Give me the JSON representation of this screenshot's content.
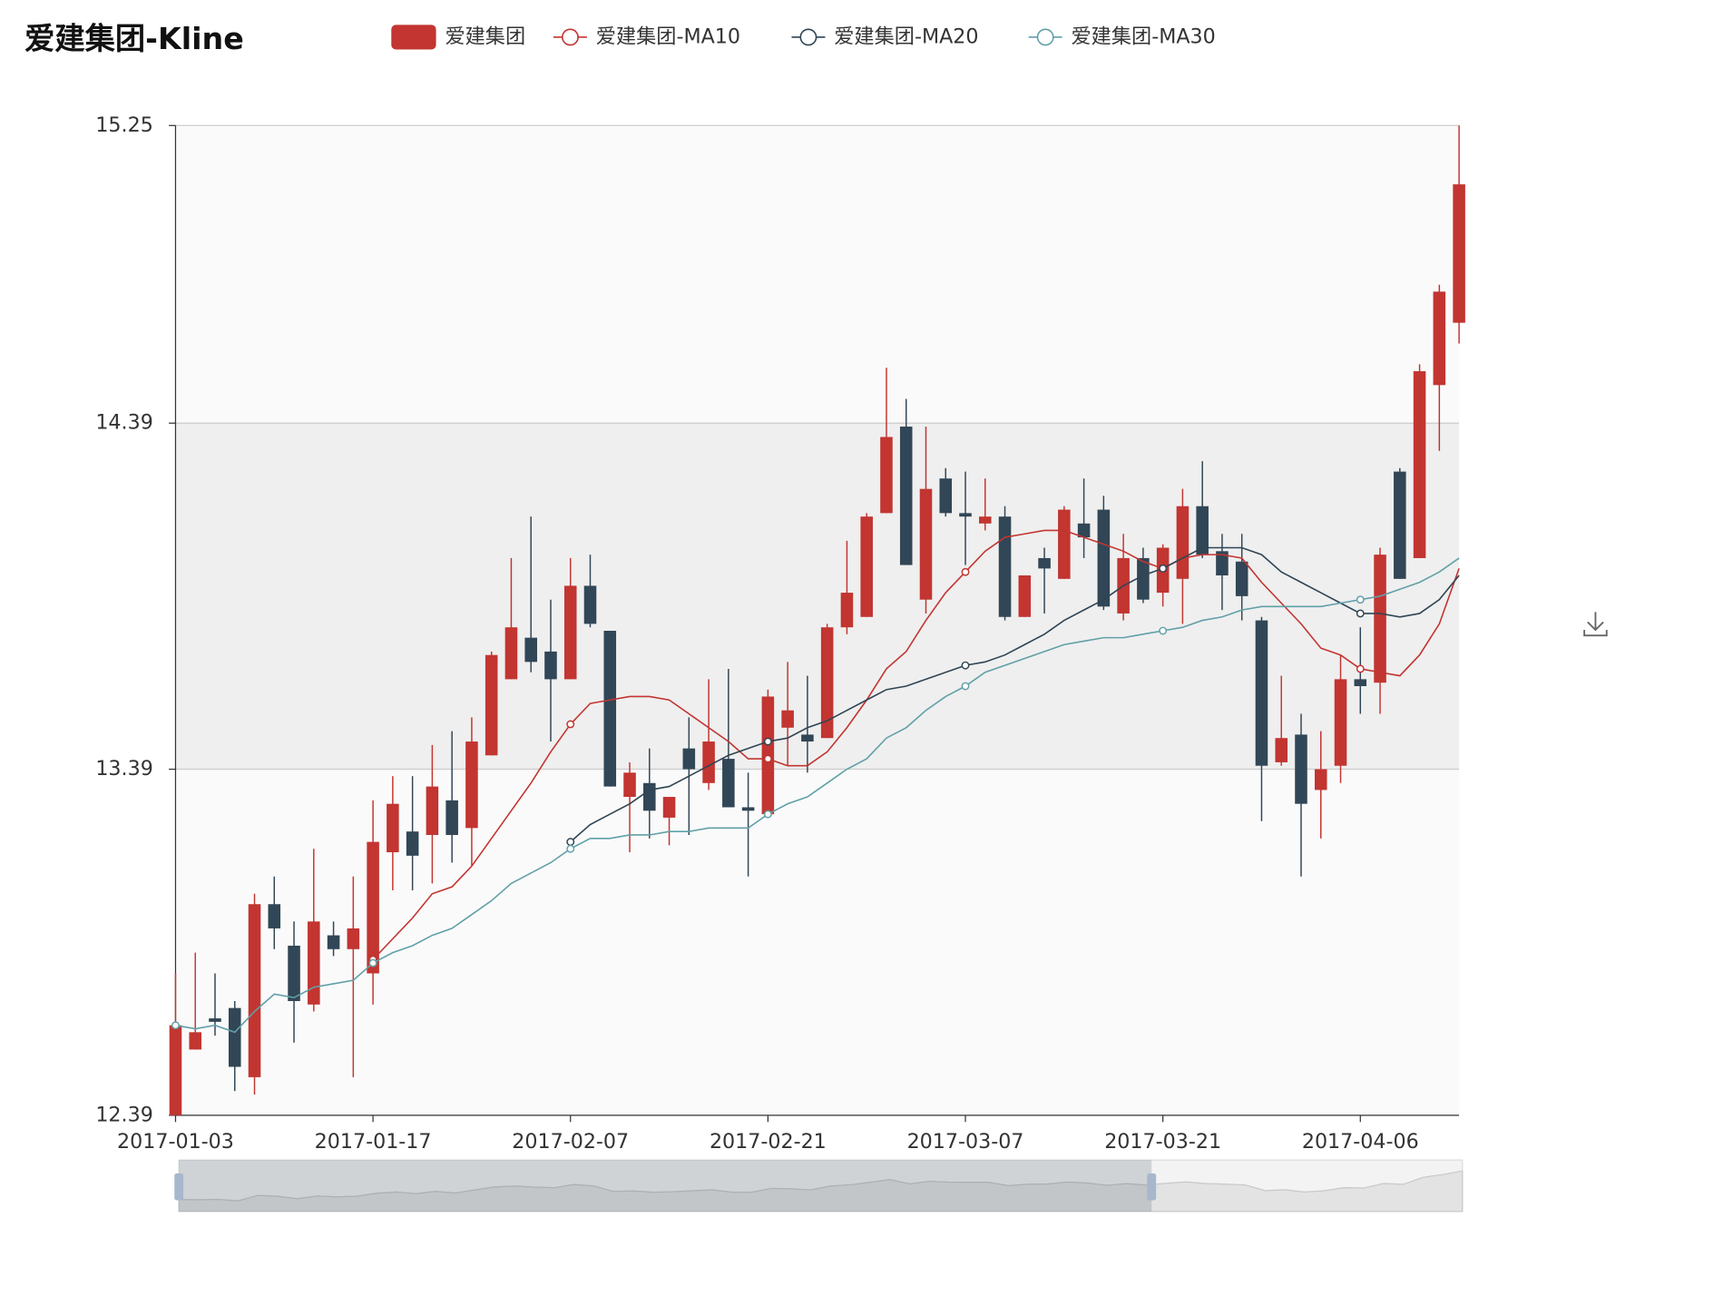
{
  "chart_data": {
    "type": "candlestick",
    "title": "爱建集团-Kline",
    "categories": [
      "2017-01-03",
      null,
      null,
      null,
      null,
      null,
      null,
      null,
      null,
      null,
      "2017-01-17",
      null,
      null,
      null,
      null,
      null,
      null,
      null,
      null,
      null,
      "2017-02-07",
      null,
      null,
      null,
      null,
      null,
      null,
      null,
      null,
      null,
      "2017-02-21",
      null,
      null,
      null,
      null,
      null,
      null,
      null,
      null,
      null,
      "2017-03-07",
      null,
      null,
      null,
      null,
      null,
      null,
      null,
      null,
      null,
      "2017-03-21",
      null,
      null,
      null,
      null,
      null,
      null,
      null,
      null,
      null,
      "2017-04-06",
      null,
      null,
      null,
      null,
      null
    ],
    "ylim": [
      12.39,
      15.25
    ],
    "yticks": [
      12.39,
      13.39,
      14.39,
      15.25
    ],
    "grid": true,
    "split_area": true,
    "series": [
      {
        "name": "爱建集团",
        "type": "candlestick",
        "color": "#c23531",
        "color0": "#314656",
        "open": [
          12.39,
          12.58,
          12.67,
          12.7,
          12.5,
          13.0,
          12.88,
          12.71,
          12.91,
          12.87,
          12.8,
          13.15,
          13.21,
          13.2,
          13.3,
          13.22,
          13.43,
          13.65,
          13.77,
          13.73,
          13.65,
          13.92,
          13.79,
          13.31,
          13.35,
          13.25,
          13.45,
          13.35,
          13.42,
          13.28,
          13.26,
          13.51,
          13.49,
          13.48,
          13.8,
          13.83,
          14.13,
          14.38,
          13.88,
          14.23,
          14.13,
          14.1,
          14.12,
          13.83,
          14.0,
          13.94,
          14.1,
          14.14,
          13.84,
          14.0,
          13.9,
          13.94,
          14.15,
          14.02,
          13.99,
          13.82,
          13.41,
          13.49,
          13.33,
          13.4,
          13.65,
          13.64,
          14.25,
          14.0,
          14.5,
          14.68
        ],
        "close": [
          12.65,
          12.63,
          12.66,
          12.53,
          13.0,
          12.93,
          12.72,
          12.95,
          12.87,
          12.93,
          13.18,
          13.29,
          13.14,
          13.34,
          13.2,
          13.47,
          13.72,
          13.8,
          13.7,
          13.65,
          13.92,
          13.81,
          13.34,
          13.38,
          13.27,
          13.31,
          13.39,
          13.47,
          13.28,
          13.27,
          13.6,
          13.56,
          13.47,
          13.8,
          13.9,
          14.12,
          14.35,
          13.98,
          14.2,
          14.13,
          14.12,
          14.12,
          13.83,
          13.95,
          13.97,
          14.14,
          14.06,
          13.86,
          14.0,
          13.88,
          14.03,
          14.15,
          14.01,
          13.95,
          13.89,
          13.4,
          13.48,
          13.29,
          13.39,
          13.65,
          13.63,
          14.01,
          13.94,
          14.54,
          14.77,
          15.08
        ],
        "low": [
          12.39,
          12.58,
          12.62,
          12.46,
          12.45,
          12.87,
          12.6,
          12.69,
          12.85,
          12.5,
          12.71,
          13.04,
          13.04,
          13.06,
          13.12,
          13.11,
          13.43,
          13.65,
          13.67,
          13.47,
          13.65,
          13.8,
          13.34,
          13.15,
          13.19,
          13.17,
          13.2,
          13.33,
          13.28,
          13.08,
          13.25,
          13.4,
          13.38,
          13.48,
          13.78,
          13.83,
          14.13,
          13.98,
          13.84,
          14.12,
          13.98,
          14.08,
          13.82,
          13.83,
          13.84,
          13.94,
          14.0,
          13.85,
          13.82,
          13.87,
          13.86,
          13.81,
          14.0,
          13.85,
          13.82,
          13.24,
          13.4,
          13.08,
          13.19,
          13.35,
          13.55,
          13.55,
          13.94,
          14.0,
          14.31,
          14.62
        ],
        "high": [
          12.8,
          12.86,
          12.8,
          12.72,
          13.03,
          13.08,
          12.95,
          13.16,
          12.95,
          13.08,
          13.3,
          13.37,
          13.37,
          13.46,
          13.5,
          13.54,
          13.73,
          14.0,
          14.12,
          13.88,
          14.0,
          14.01,
          13.79,
          13.41,
          13.45,
          13.31,
          13.54,
          13.65,
          13.68,
          13.38,
          13.62,
          13.7,
          13.66,
          13.81,
          14.05,
          14.13,
          14.55,
          14.46,
          14.38,
          14.26,
          14.25,
          14.23,
          14.15,
          13.95,
          14.03,
          14.15,
          14.23,
          14.18,
          14.07,
          14.03,
          14.04,
          14.2,
          14.28,
          14.07,
          14.07,
          13.83,
          13.66,
          13.55,
          13.5,
          13.72,
          13.8,
          14.03,
          14.26,
          14.56,
          14.79,
          15.25
        ]
      },
      {
        "name": "爱建集团-MA10",
        "type": "line",
        "color": "#c23531",
        "values": [
          null,
          null,
          null,
          null,
          null,
          null,
          null,
          null,
          null,
          null,
          12.84,
          12.9,
          12.96,
          13.03,
          13.05,
          13.11,
          13.19,
          13.27,
          13.35,
          13.44,
          13.52,
          13.58,
          13.59,
          13.6,
          13.6,
          13.59,
          13.55,
          13.51,
          13.47,
          13.42,
          13.42,
          13.4,
          13.4,
          13.44,
          13.51,
          13.59,
          13.68,
          13.73,
          13.82,
          13.9,
          13.96,
          14.02,
          14.06,
          14.07,
          14.08,
          14.08,
          14.06,
          14.04,
          14.02,
          13.99,
          13.97,
          14.0,
          14.01,
          14.01,
          14.0,
          13.93,
          13.87,
          13.81,
          13.74,
          13.72,
          13.68,
          13.67,
          13.66,
          13.72,
          13.81,
          13.97
        ]
      },
      {
        "name": "爱建集团-MA20",
        "type": "line",
        "color": "#2f4554",
        "values": [
          null,
          null,
          null,
          null,
          null,
          null,
          null,
          null,
          null,
          null,
          null,
          null,
          null,
          null,
          null,
          null,
          null,
          null,
          null,
          null,
          13.18,
          13.23,
          13.26,
          13.29,
          13.33,
          13.34,
          13.37,
          13.4,
          13.43,
          13.45,
          13.47,
          13.48,
          13.51,
          13.53,
          13.56,
          13.59,
          13.62,
          13.63,
          13.65,
          13.67,
          13.69,
          13.7,
          13.72,
          13.75,
          13.78,
          13.82,
          13.85,
          13.88,
          13.92,
          13.95,
          13.97,
          14.0,
          14.03,
          14.03,
          14.03,
          14.01,
          13.96,
          13.93,
          13.9,
          13.87,
          13.84,
          13.84,
          13.83,
          13.84,
          13.88,
          13.95
        ]
      },
      {
        "name": "爱建集团-MA30",
        "type": "line",
        "color": "#61a0a8",
        "values": [
          12.65,
          12.64,
          12.65,
          12.63,
          12.69,
          12.74,
          12.73,
          12.76,
          12.77,
          12.78,
          12.83,
          12.86,
          12.88,
          12.91,
          12.93,
          12.97,
          13.01,
          13.06,
          13.09,
          13.12,
          13.16,
          13.19,
          13.19,
          13.2,
          13.2,
          13.21,
          13.21,
          13.22,
          13.22,
          13.22,
          13.26,
          13.29,
          13.31,
          13.35,
          13.39,
          13.42,
          13.48,
          13.51,
          13.56,
          13.6,
          13.63,
          13.67,
          13.69,
          13.71,
          13.73,
          13.75,
          13.76,
          13.77,
          13.77,
          13.78,
          13.79,
          13.8,
          13.82,
          13.83,
          13.85,
          13.86,
          13.86,
          13.86,
          13.86,
          13.87,
          13.88,
          13.89,
          13.91,
          13.93,
          13.96,
          14.0
        ]
      }
    ]
  }
}
